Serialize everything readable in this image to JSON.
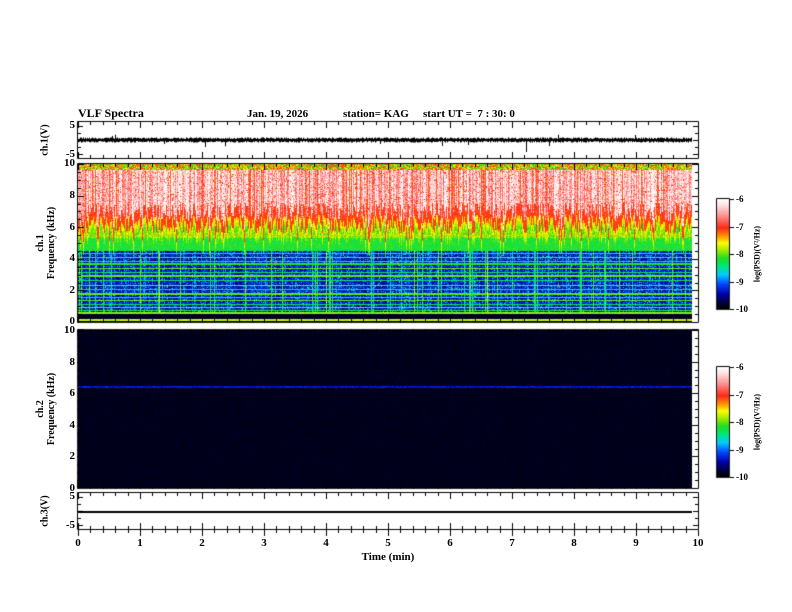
{
  "header": {
    "title": "VLF Spectra",
    "date": "Jan. 19, 2026",
    "station": "station= KAG",
    "start_ut": "start UT =  7 : 30: 0"
  },
  "panels": {
    "ch1_wave": {
      "ylabel": "ch.1(V)",
      "ytop": "5",
      "ybottom": "-5"
    },
    "ch1_spec": {
      "channel": "ch.1",
      "ylabel": "Frequency (kHz)",
      "yticks": [
        "10",
        "8",
        "6",
        "4",
        "2",
        "0"
      ]
    },
    "ch2_spec": {
      "channel": "ch.2",
      "ylabel": "Frequency (kHz)",
      "yticks": [
        "10",
        "8",
        "6",
        "4",
        "2",
        "0"
      ]
    },
    "ch3_wave": {
      "ylabel": "ch.3(V)",
      "ytop": "5",
      "ybottom": "-5"
    }
  },
  "xaxis": {
    "title": "Time (min)",
    "ticks": [
      "0",
      "1",
      "2",
      "3",
      "4",
      "5",
      "6",
      "7",
      "8",
      "9",
      "10"
    ]
  },
  "colorbar": {
    "label": "log(PSD)(V²/Hz)",
    "ticks": [
      "-6",
      "-7",
      "-8",
      "-9",
      "-10"
    ]
  },
  "chart_data": {
    "figure": "VLF spectra summary plot, station KAG, Jan. 19, 2026, start UT 7:30:0, 10 minute record",
    "panels": [
      {
        "type": "line",
        "name": "ch1-voltage",
        "ylabel": "ch.1(V)",
        "ylim": [
          -5,
          5
        ],
        "xlim": [
          0,
          10
        ],
        "summary": "band-limited noise around 0 V (~±1 V) with impulsive spikes; largest ≈ -4 V near t≈7.2 min"
      },
      {
        "type": "heatmap",
        "name": "ch1-spectrogram",
        "ylabel": "Frequency (kHz)",
        "ylim": [
          0,
          10
        ],
        "xlim": [
          0,
          10
        ],
        "zlabel": "log(PSD)(V²/Hz)",
        "zlim": [
          -10,
          -6
        ],
        "summary": "intense broadband emission (PSD≈-6, white/red) from ~6 to 10 kHz with vertical striations; yellow-green transition 4.5-6 kHz; blue speckled background (~-9) from 0.7-4.5 kHz crossed by narrow cyan/green interference lines; near-black band below 0.5 kHz with green line at ~0.15 kHz"
      },
      {
        "type": "heatmap",
        "name": "ch2-spectrogram",
        "ylabel": "Frequency (kHz)",
        "ylim": [
          0,
          10
        ],
        "xlim": [
          0,
          10
        ],
        "zlabel": "log(PSD)(V²/Hz)",
        "zlim": [
          -10,
          -6
        ],
        "summary": "no signal (PSD≈-10, black) except a faint dark-blue line at ≈6.4 kHz; data ends at ≈9.9 min"
      },
      {
        "type": "line",
        "name": "ch3-voltage",
        "ylabel": "ch.3(V)",
        "ylim": [
          -5,
          5
        ],
        "xlim": [
          0,
          10
        ],
        "summary": "constant level ≈ 0 V flat line ending at ≈9.9 min"
      }
    ],
    "render": {
      "seed": 20260119,
      "colormap": [
        [
          0,
          "#000000"
        ],
        [
          0.05,
          "#000038"
        ],
        [
          0.13,
          "#0000a8"
        ],
        [
          0.22,
          "#0044ff"
        ],
        [
          0.31,
          "#00ccff"
        ],
        [
          0.39,
          "#00e878"
        ],
        [
          0.46,
          "#22dd22"
        ],
        [
          0.54,
          "#aaee00"
        ],
        [
          0.6,
          "#ffff00"
        ],
        [
          0.66,
          "#ff9900"
        ],
        [
          0.74,
          "#ff2a1a"
        ],
        [
          0.86,
          "#ff9a9a"
        ],
        [
          0.94,
          "#ffdcdc"
        ],
        [
          1,
          "#ffffff"
        ]
      ],
      "spec1_h_lines": [
        [
          5.5,
          0.64,
          1
        ],
        [
          4.62,
          0.45,
          1
        ],
        [
          4.35,
          0.42,
          1
        ],
        [
          4.1,
          0.5,
          1
        ],
        [
          3.85,
          0.42,
          1
        ],
        [
          3.65,
          0.46,
          2
        ],
        [
          3.4,
          0.5,
          1
        ],
        [
          3.15,
          0.42,
          1
        ],
        [
          2.92,
          0.5,
          2
        ],
        [
          2.6,
          0.42,
          1
        ],
        [
          2.3,
          0.5,
          1
        ],
        [
          2.05,
          0.42,
          1
        ],
        [
          1.8,
          0.5,
          2
        ],
        [
          1.55,
          0.42,
          1
        ],
        [
          1.35,
          0.5,
          1
        ],
        [
          1.1,
          0.42,
          1
        ],
        [
          0.92,
          0.5,
          1
        ],
        [
          0.75,
          0.45,
          1
        ],
        [
          0.55,
          0.52,
          2
        ],
        [
          0.15,
          0.56,
          2
        ]
      ],
      "spec2_h_lines": [
        [
          6.42,
          0.16,
          2
        ]
      ],
      "wave1_spikes": [
        [
          86,
          4
        ],
        [
          127,
          7
        ],
        [
          302,
          4
        ],
        [
          390,
          5
        ],
        [
          448,
          12
        ],
        [
          557,
          -5
        ]
      ]
    }
  }
}
